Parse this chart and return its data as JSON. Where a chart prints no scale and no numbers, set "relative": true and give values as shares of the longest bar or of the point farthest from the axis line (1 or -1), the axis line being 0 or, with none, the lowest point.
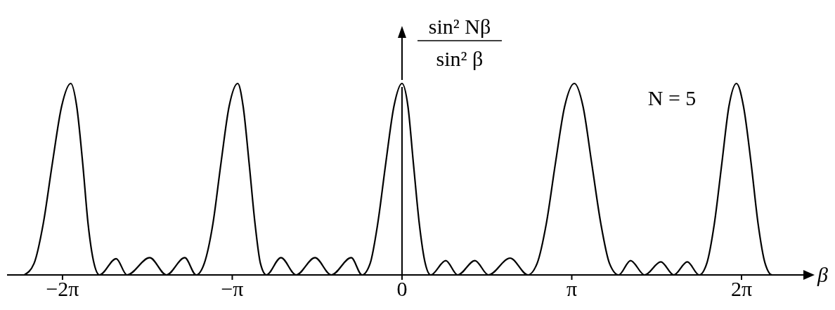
{
  "chart_data": {
    "type": "line",
    "relative": true,
    "xlabel": "β",
    "ylabel": "sin² Nβ\nsin² β",
    "annotations": [
      "N = 5"
    ],
    "xlim": [
      -7.31,
      7.61
    ],
    "xticks": [
      {
        "value": -6.2832,
        "label": "−2π"
      },
      {
        "value": -3.1416,
        "label": "−π"
      },
      0,
      {
        "value": 3.1416,
        "label": "π"
      },
      {
        "value": 6.2832,
        "label": "2π"
      }
    ],
    "grid": false,
    "legend": false,
    "marker": "none",
    "line_style": "solid",
    "x": [
      -6.99,
      -6.81,
      -6.64,
      -6.47,
      -6.3,
      -6.13,
      -6.02,
      -5.91,
      -5.81,
      -5.7,
      -5.6,
      -5.29,
      -5.09,
      -4.67,
      -4.36,
      -4.02,
      -3.81,
      -3.66,
      -3.5,
      -3.35,
      -3.2,
      -3.04,
      -2.94,
      -2.83,
      -2.72,
      -2.62,
      -2.51,
      -2.24,
      -1.96,
      -1.61,
      -1.31,
      -0.94,
      -0.74,
      -0.59,
      -0.45,
      -0.3,
      -0.15,
      0,
      0.11,
      0.21,
      0.32,
      0.43,
      0.53,
      0.81,
      1.03,
      1.35,
      1.6,
      2.0,
      2.33,
      2.5,
      2.67,
      2.84,
      3.01,
      3.19,
      3.35,
      3.51,
      3.68,
      3.84,
      4.01,
      4.23,
      4.49,
      4.79,
      5.03,
      5.28,
      5.5,
      5.64,
      5.78,
      5.92,
      6.05,
      6.19,
      6.32,
      6.46,
      6.59,
      6.72,
      6.85,
      6.96
    ],
    "series": [
      {
        "color": "#000000",
        "values": [
          0,
          0.06,
          0.267,
          0.585,
          0.88,
          1,
          0.88,
          0.585,
          0.267,
          0.06,
          0,
          0.085,
          0,
          0.09,
          0,
          0.09,
          0,
          0.06,
          0.267,
          0.585,
          0.88,
          1,
          0.88,
          0.585,
          0.267,
          0.06,
          0,
          0.09,
          0,
          0.09,
          0,
          0.09,
          0,
          0.06,
          0.267,
          0.585,
          0.88,
          1,
          0.88,
          0.585,
          0.267,
          0.06,
          0,
          0.075,
          0,
          0.075,
          0,
          0.088,
          0,
          0.06,
          0.267,
          0.585,
          0.88,
          1,
          0.88,
          0.585,
          0.267,
          0.06,
          0,
          0.075,
          0,
          0.068,
          0,
          0.068,
          0,
          0.06,
          0.267,
          0.585,
          0.88,
          1,
          0.88,
          0.585,
          0.267,
          0.06,
          0,
          0
        ]
      }
    ]
  }
}
